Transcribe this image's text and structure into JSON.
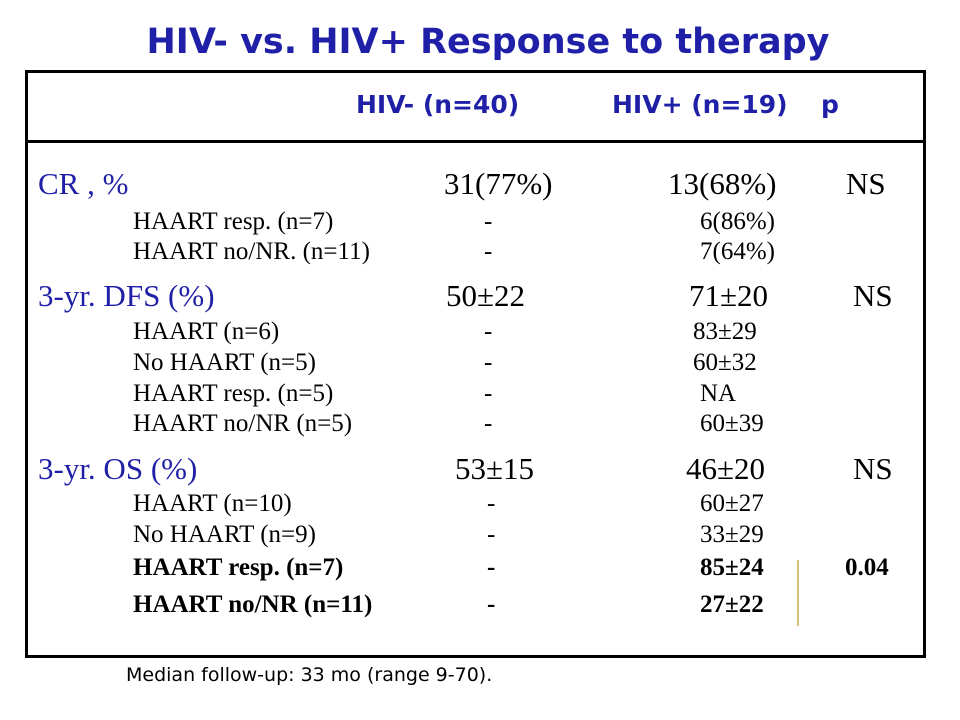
{
  "title": "HIV- vs. HIV+ Response to therapy",
  "header": {
    "col1": "HIV- (n=40)",
    "col2": "HIV+ (n=19)",
    "col3": "p"
  },
  "rows": [
    {
      "label": "CR , %",
      "hiv_neg": "31(77%)",
      "hiv_pos": "13(68%)",
      "p": "NS"
    },
    {
      "label": "HAART resp. (n=7)",
      "hiv_neg": "-",
      "hiv_pos": "6(86%)",
      "p": ""
    },
    {
      "label": "HAART no/NR. (n=11)",
      "hiv_neg": "-",
      "hiv_pos": "7(64%)",
      "p": ""
    },
    {
      "label": "3-yr. DFS (%)",
      "hiv_neg": "50±22",
      "hiv_pos": "71±20",
      "p": "NS"
    },
    {
      "label": "HAART (n=6)",
      "hiv_neg": "-",
      "hiv_pos": "83±29",
      "p": ""
    },
    {
      "label": "No HAART (n=5)",
      "hiv_neg": "-",
      "hiv_pos": "60±32",
      "p": ""
    },
    {
      "label": "HAART resp. (n=5)",
      "hiv_neg": "-",
      "hiv_pos": "NA",
      "p": ""
    },
    {
      "label": "HAART no/NR (n=5)",
      "hiv_neg": "-",
      "hiv_pos": "60±39",
      "p": ""
    },
    {
      "label": "3-yr. OS (%)",
      "hiv_neg": "53±15",
      "hiv_pos": "46±20",
      "p": "NS"
    },
    {
      "label": "HAART (n=10)",
      "hiv_neg": "-",
      "hiv_pos": "60±27",
      "p": ""
    },
    {
      "label": "No HAART (n=9)",
      "hiv_neg": "-",
      "hiv_pos": "33±29",
      "p": ""
    },
    {
      "label": "HAART resp. (n=7)",
      "hiv_neg": "-",
      "hiv_pos": "85±24",
      "p": "0.04"
    },
    {
      "label": "HAART no/NR (n=11)",
      "hiv_neg": "-",
      "hiv_pos": "27±22",
      "p": ""
    }
  ],
  "footer": "Median follow-up: 33 mo (range 9-70)."
}
